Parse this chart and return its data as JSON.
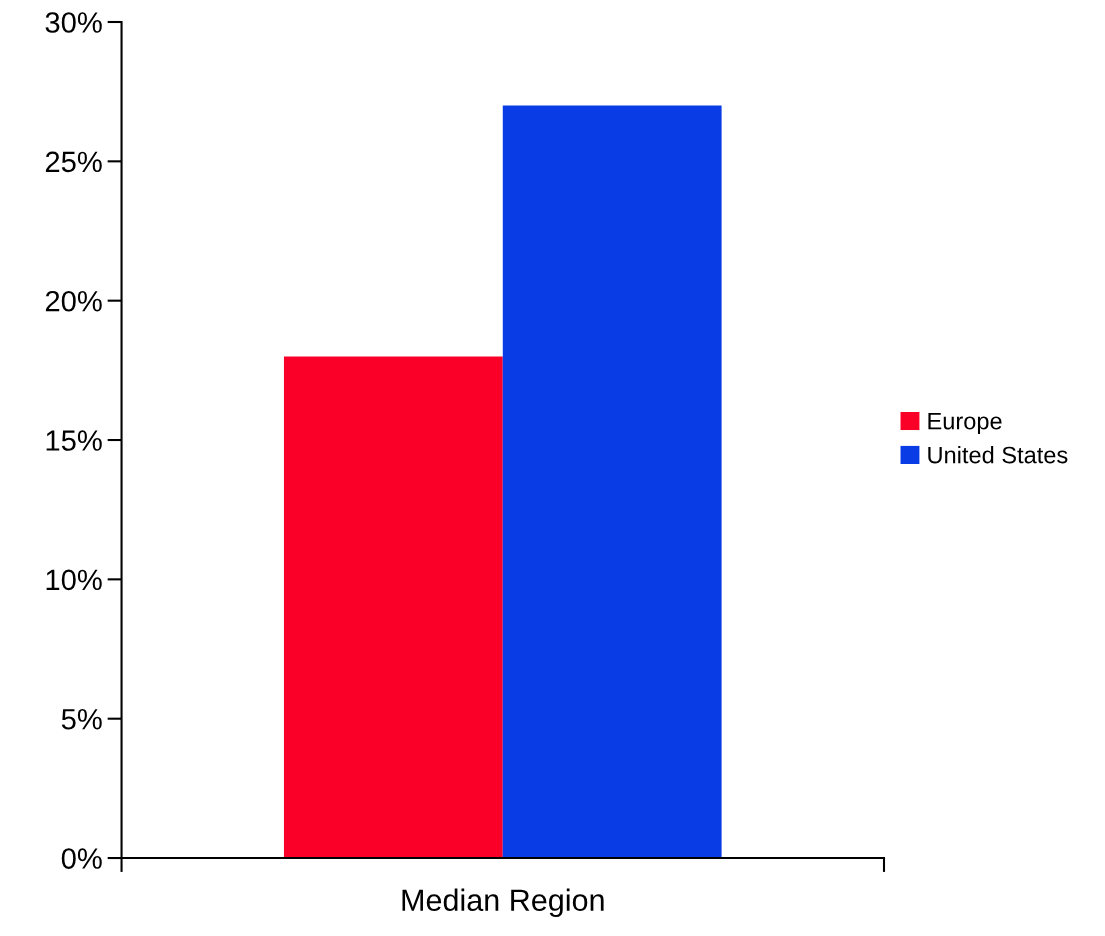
{
  "chart_data": {
    "type": "bar",
    "categories": [
      "Median Region"
    ],
    "series": [
      {
        "name": "Europe",
        "color": "#fa0028",
        "values": [
          18
        ]
      },
      {
        "name": "United States",
        "color": "#0a3ce6",
        "values": [
          27
        ]
      }
    ],
    "ylim": [
      0,
      30
    ],
    "yticks": [
      {
        "value": 0,
        "label": "0%"
      },
      {
        "value": 5,
        "label": "5%"
      },
      {
        "value": 10,
        "label": "10%"
      },
      {
        "value": 15,
        "label": "15%"
      },
      {
        "value": 20,
        "label": "20%"
      },
      {
        "value": 25,
        "label": "25%"
      },
      {
        "value": 30,
        "label": "30%"
      }
    ],
    "grid": false,
    "legend": "right"
  }
}
